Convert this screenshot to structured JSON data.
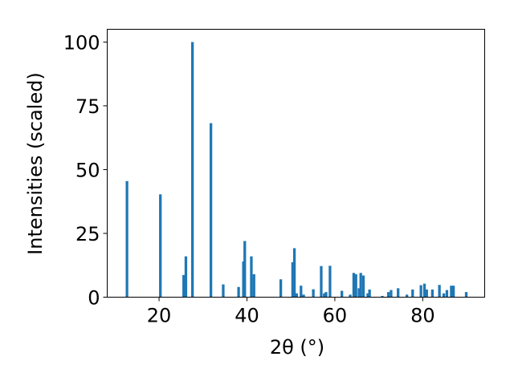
{
  "chart_data": {
    "type": "bar",
    "xlabel": "2θ (°)",
    "ylabel": "Intensities (scaled)",
    "xlim": [
      8.2,
      94.1
    ],
    "ylim": [
      0,
      105
    ],
    "xticks": [
      20,
      40,
      60,
      80
    ],
    "yticks": [
      0,
      25,
      50,
      75,
      100
    ],
    "grid": false,
    "bar_color": "#1f77b4",
    "bar_width": 0.6,
    "x": [
      12.7,
      20.3,
      25.6,
      26.1,
      27.6,
      31.8,
      34.6,
      38.1,
      39.2,
      39.5,
      41.0,
      41.6,
      47.7,
      50.4,
      50.8,
      51.3,
      52.3,
      52.9,
      55.1,
      56.9,
      57.6,
      58.0,
      58.9,
      61.6,
      63.5,
      64.3,
      64.8,
      65.5,
      65.9,
      66.5,
      67.5,
      67.9,
      70.8,
      72.2,
      72.8,
      74.4,
      76.4,
      77.7,
      79.6,
      80.4,
      80.9,
      82.2,
      83.8,
      84.8,
      85.5,
      86.5,
      87.0,
      89.9
    ],
    "values": [
      45.5,
      40.3,
      8.7,
      16.0,
      100.0,
      68.2,
      5.0,
      4.0,
      14.0,
      22.0,
      16.0,
      9.0,
      7.0,
      13.7,
      19.2,
      1.5,
      4.5,
      1.0,
      3.1,
      12.2,
      1.5,
      2.0,
      12.3,
      2.5,
      1.0,
      9.5,
      9.0,
      3.5,
      9.5,
      8.5,
      1.5,
      3.0,
      0.5,
      2.0,
      2.8,
      3.5,
      1.0,
      3.0,
      4.7,
      5.3,
      3.0,
      3.0,
      4.8,
      1.5,
      2.8,
      4.5,
      4.5,
      2.0
    ]
  }
}
